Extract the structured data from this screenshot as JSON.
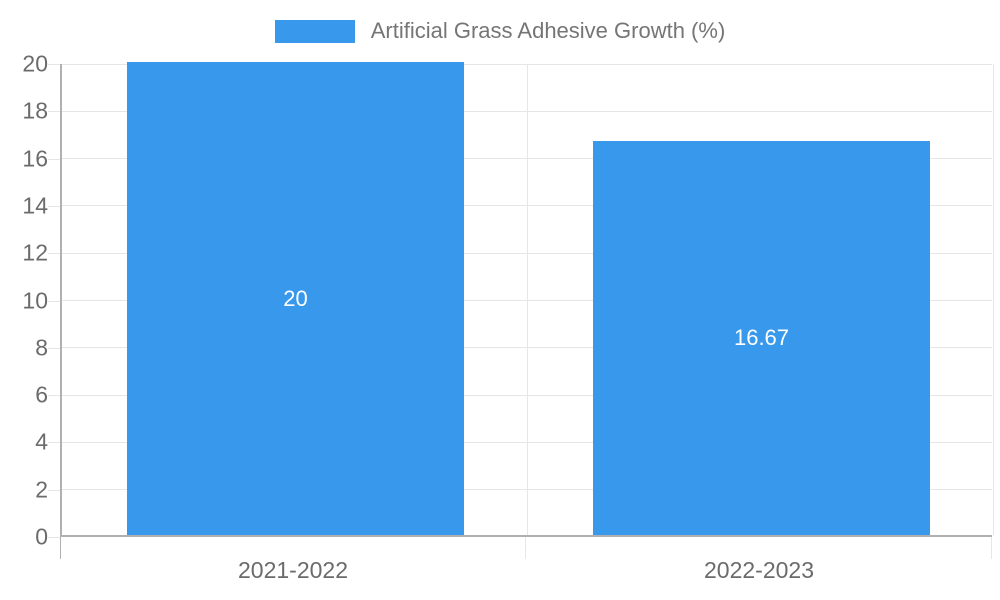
{
  "chart_data": {
    "type": "bar",
    "title": "Artificial Grass Adhesive Growth (%)",
    "legend": [
      "Artificial Grass Adhesive Growth (%)"
    ],
    "legend_position": "top",
    "categories": [
      "2021-2022",
      "2022-2023"
    ],
    "values": [
      20,
      16.67
    ],
    "data_labels": [
      "20",
      "16.67"
    ],
    "xlabel": "",
    "ylabel": "",
    "ylim": [
      0,
      20
    ],
    "ytick_step": 2,
    "grid": true,
    "colors": {
      "bar": "#3898ec",
      "bar_value_text": "#ffffff",
      "axis_line": "#b0b0b0",
      "gridline": "#e6e6e6",
      "tick_text": "#6b6b6b",
      "legend_text": "#757575",
      "background": "#ffffff"
    }
  }
}
